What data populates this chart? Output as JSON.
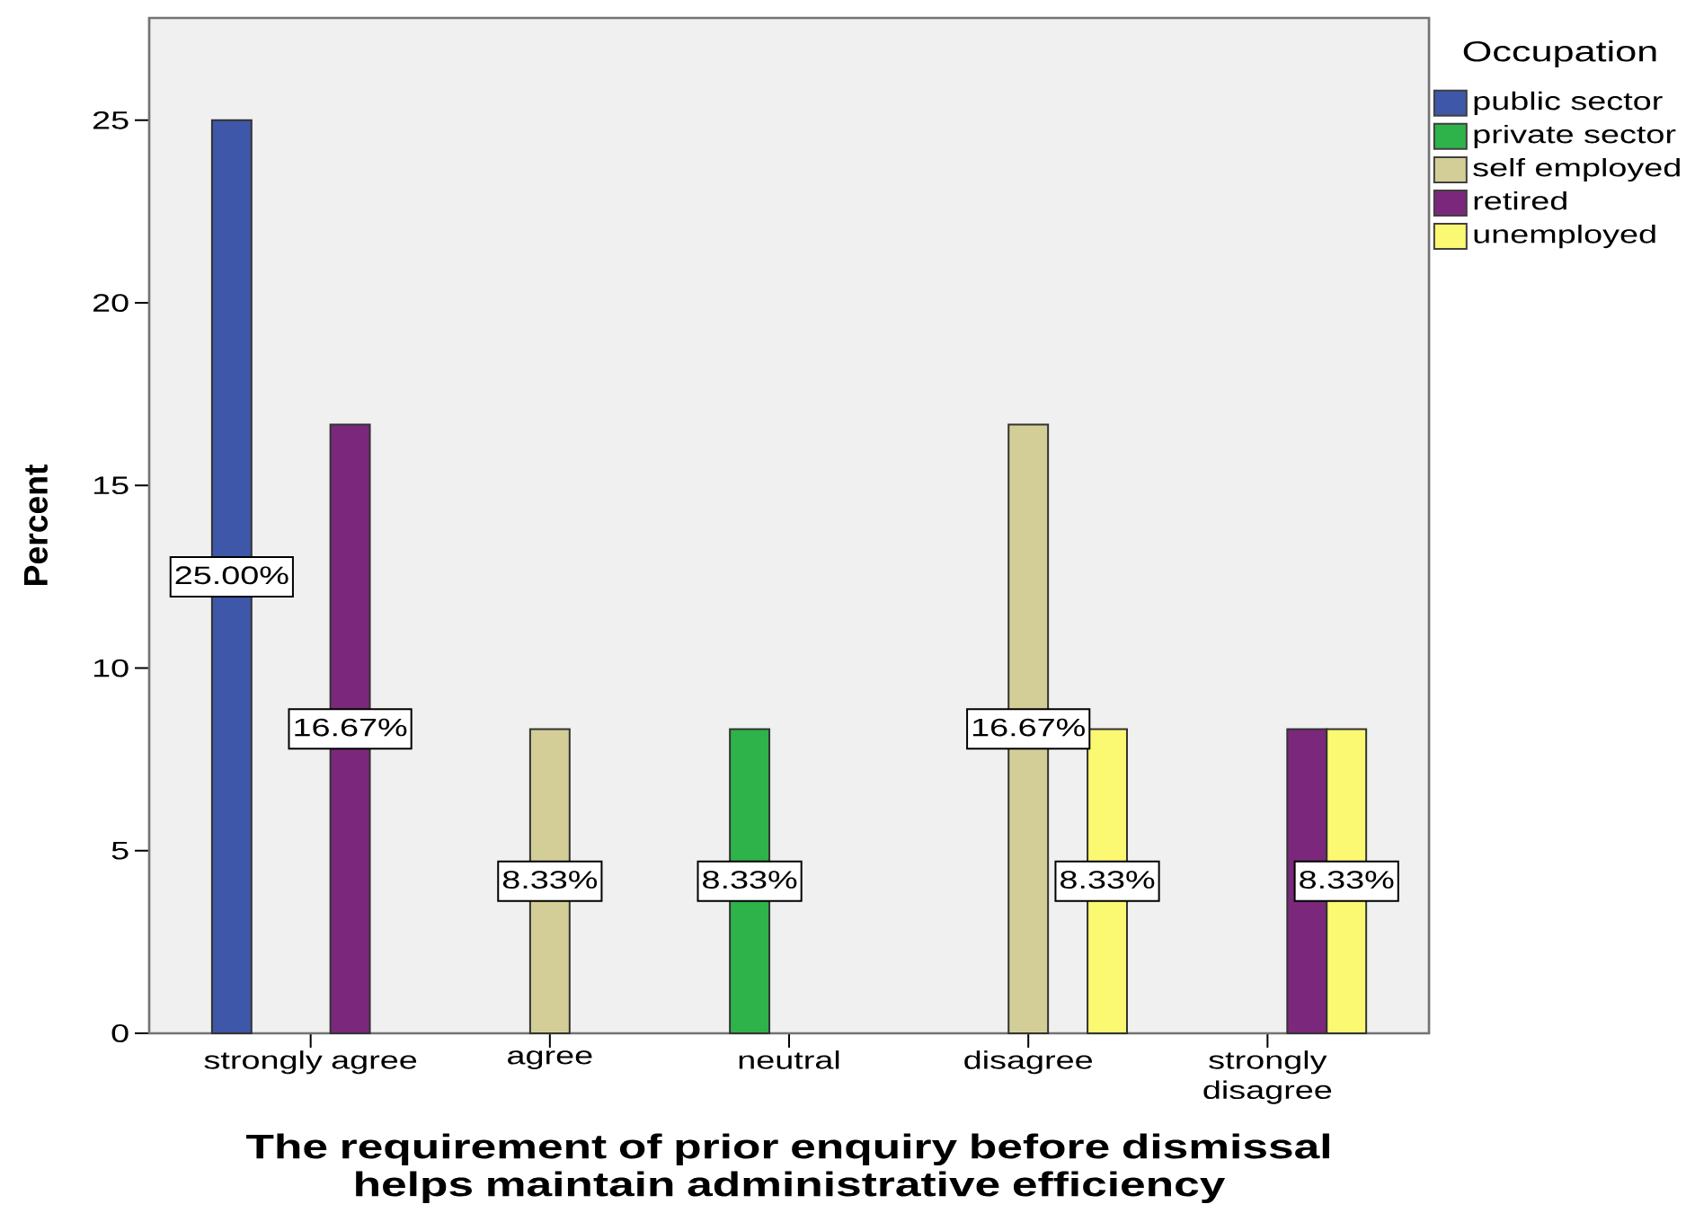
{
  "chart_data": {
    "type": "bar",
    "xlabel": "The requirement of prior enquiry before dismissal helps maintain administrative efficiency",
    "ylabel": "Percent",
    "legend_title": "Occupation",
    "categories": [
      "strongly agree",
      "agree",
      "neutral",
      "disagree",
      "strongly disagree"
    ],
    "series": [
      {
        "name": "public sector",
        "color": "#3e57a8",
        "values": [
          25,
          null,
          null,
          null,
          null
        ],
        "value_labels": [
          "25.00%",
          null,
          null,
          null,
          null
        ]
      },
      {
        "name": "private sector",
        "color": "#2eb34a",
        "values": [
          null,
          null,
          8.33,
          null,
          null
        ],
        "value_labels": [
          null,
          null,
          "8.33%",
          null,
          null
        ]
      },
      {
        "name": "self employed",
        "color": "#d3ce97",
        "values": [
          null,
          8.33,
          null,
          16.67,
          null
        ],
        "value_labels": [
          null,
          "8.33%",
          null,
          "16.67%",
          null
        ]
      },
      {
        "name": "retired",
        "color": "#7b287c",
        "values": [
          16.67,
          null,
          null,
          null,
          8.33
        ],
        "value_labels": [
          "16.67%",
          null,
          null,
          null,
          null
        ]
      },
      {
        "name": "unemployed",
        "color": "#fbf872",
        "values": [
          null,
          null,
          null,
          8.33,
          8.33
        ],
        "value_labels": [
          null,
          null,
          null,
          "8.33%",
          "8.33%"
        ]
      }
    ],
    "ylim": [
      0,
      27.8
    ],
    "yticks": [
      0,
      5,
      10,
      15,
      20,
      25
    ],
    "legend": "top right"
  }
}
